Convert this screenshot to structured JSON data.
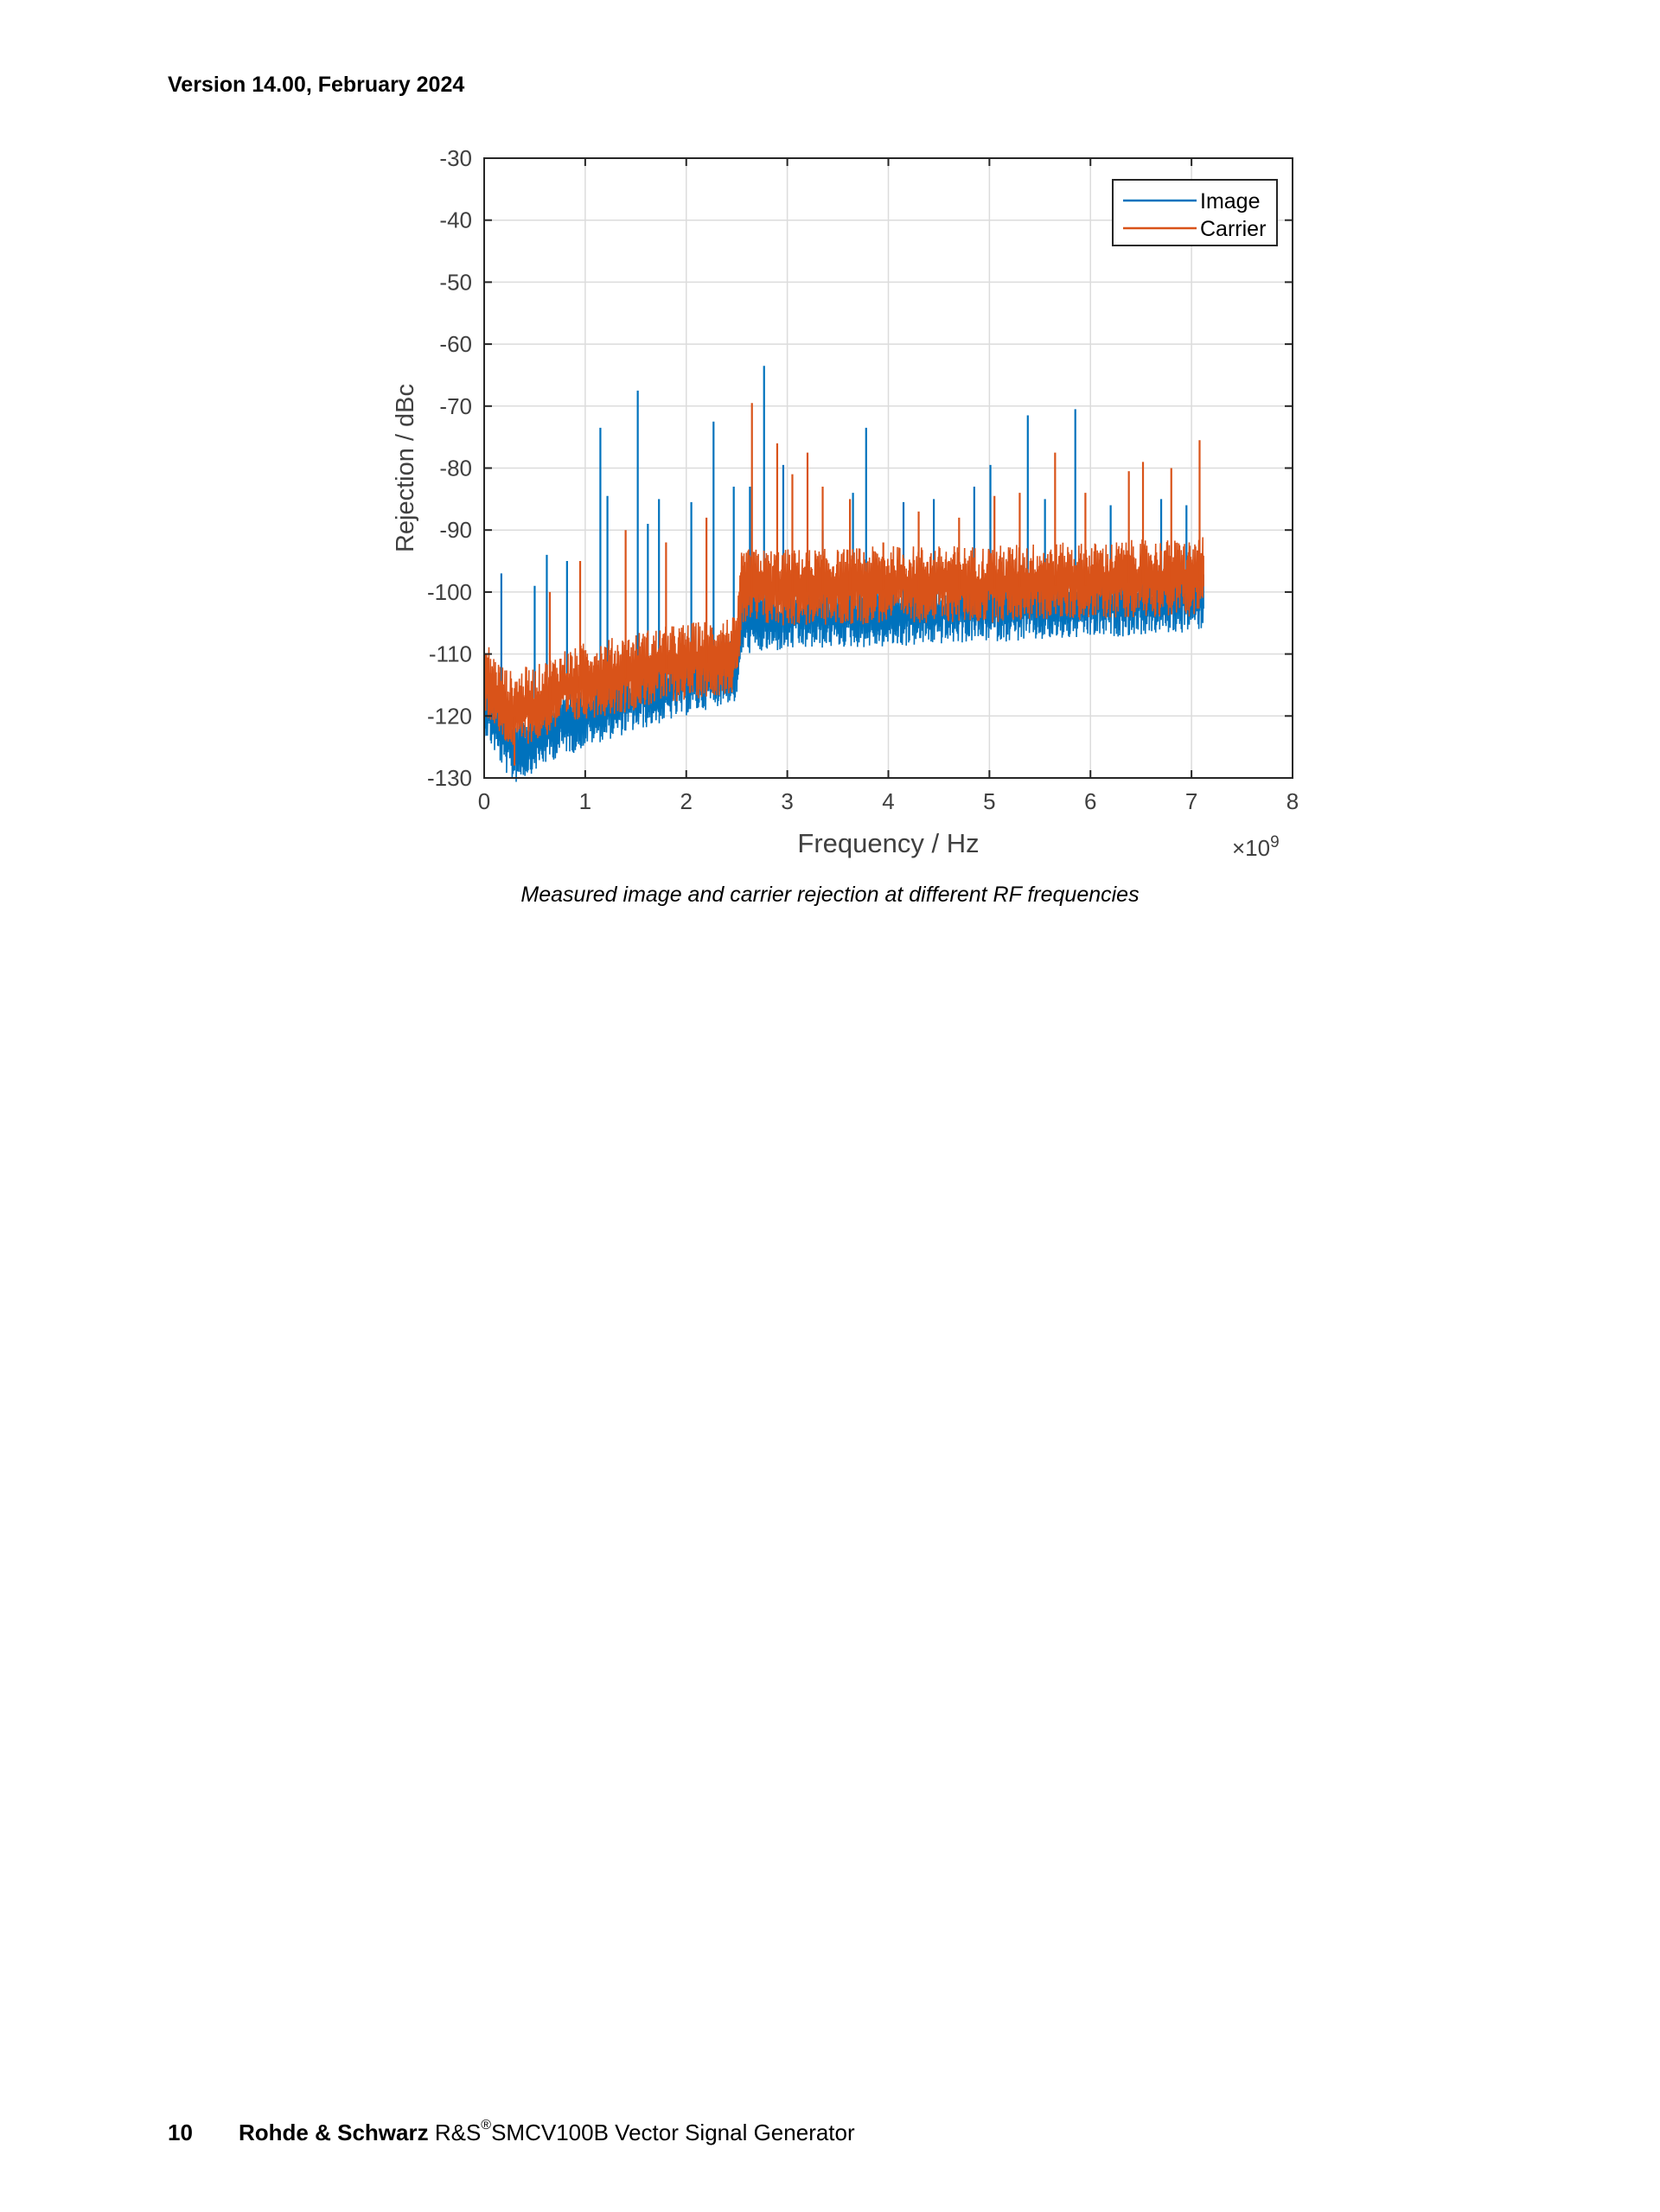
{
  "header": {
    "version_text": "Version 14.00, February 2024"
  },
  "figure": {
    "caption": "Measured image and carrier rejection at different RF frequencies"
  },
  "footer": {
    "page_number": "10",
    "brand": "Rohde & Schwarz",
    "product_prefix": "R&S",
    "registered_mark": "®",
    "product_name": "SMCV100B Vector Signal Generator"
  },
  "chart_data": {
    "type": "line",
    "title": "",
    "xlabel": "Frequency / Hz",
    "ylabel": "Rejection / dBc",
    "x_exponent_label": "×10",
    "x_exponent_power": "9",
    "xlim": [
      0,
      8
    ],
    "ylim": [
      -130,
      -30
    ],
    "x_ticks": [
      0,
      1,
      2,
      3,
      4,
      5,
      6,
      7,
      8
    ],
    "y_ticks": [
      -30,
      -40,
      -50,
      -60,
      -70,
      -80,
      -90,
      -100,
      -110,
      -120,
      -130
    ],
    "x_tick_labels": [
      "0",
      "1",
      "2",
      "3",
      "4",
      "5",
      "6",
      "7",
      "8"
    ],
    "y_tick_labels": [
      "-30",
      "-40",
      "-50",
      "-60",
      "-70",
      "-80",
      "-90",
      "-100",
      "-110",
      "-120",
      "-130"
    ],
    "grid": true,
    "legend_position": "top-right",
    "series": [
      {
        "name": "Image",
        "color": "#0072BD",
        "x": [
          0.0,
          0.1,
          0.2,
          0.3,
          0.4,
          0.5,
          0.6,
          0.7,
          0.8,
          0.9,
          1.0,
          1.2,
          1.4,
          1.6,
          1.8,
          2.0,
          2.2,
          2.4,
          2.5,
          2.55,
          2.7,
          3.0,
          3.5,
          4.0,
          4.5,
          5.0,
          5.5,
          6.0,
          6.5,
          7.0,
          7.12
        ],
        "y": [
          -117,
          -120,
          -123,
          -125,
          -124,
          -123,
          -122,
          -121,
          -120,
          -120,
          -119,
          -118,
          -117,
          -116,
          -115,
          -114,
          -113,
          -112,
          -112,
          -104,
          -104,
          -103.5,
          -103,
          -103,
          -102.5,
          -102,
          -102,
          -101.5,
          -101,
          -100.5,
          -100
        ],
        "peaks": [
          {
            "x": 0.17,
            "y": -97
          },
          {
            "x": 0.5,
            "y": -99
          },
          {
            "x": 0.62,
            "y": -94
          },
          {
            "x": 0.82,
            "y": -95
          },
          {
            "x": 1.15,
            "y": -73.5
          },
          {
            "x": 1.22,
            "y": -84.5
          },
          {
            "x": 1.52,
            "y": -67.5
          },
          {
            "x": 1.62,
            "y": -89
          },
          {
            "x": 1.73,
            "y": -85
          },
          {
            "x": 2.05,
            "y": -85.5
          },
          {
            "x": 2.27,
            "y": -72.5
          },
          {
            "x": 2.47,
            "y": -83
          },
          {
            "x": 2.63,
            "y": -83
          },
          {
            "x": 2.77,
            "y": -63.5
          },
          {
            "x": 2.96,
            "y": -79.5
          },
          {
            "x": 3.35,
            "y": -90
          },
          {
            "x": 3.65,
            "y": -84
          },
          {
            "x": 3.78,
            "y": -73.5
          },
          {
            "x": 4.15,
            "y": -85.5
          },
          {
            "x": 4.45,
            "y": -85
          },
          {
            "x": 4.85,
            "y": -83
          },
          {
            "x": 5.01,
            "y": -79.5
          },
          {
            "x": 5.38,
            "y": -71.5
          },
          {
            "x": 5.55,
            "y": -85
          },
          {
            "x": 5.85,
            "y": -70.5
          },
          {
            "x": 6.2,
            "y": -86
          },
          {
            "x": 6.7,
            "y": -85
          },
          {
            "x": 6.95,
            "y": -86
          }
        ]
      },
      {
        "name": "Carrier",
        "color": "#D95319",
        "x": [
          0.0,
          0.1,
          0.2,
          0.3,
          0.4,
          0.5,
          0.6,
          0.7,
          0.8,
          0.9,
          1.0,
          1.2,
          1.4,
          1.6,
          1.8,
          2.0,
          2.2,
          2.4,
          2.5,
          2.55,
          2.7,
          3.0,
          3.5,
          4.0,
          4.5,
          5.0,
          5.5,
          6.0,
          6.5,
          7.0,
          7.12
        ],
        "y": [
          -114,
          -117,
          -119,
          -120,
          -119,
          -119,
          -118,
          -117,
          -116,
          -116,
          -115,
          -114.5,
          -114,
          -113,
          -112.5,
          -112,
          -111.5,
          -111,
          -111,
          -100,
          -100,
          -100,
          -100,
          -99.5,
          -99.5,
          -99.5,
          -99,
          -99,
          -98.5,
          -98.5,
          -98
        ],
        "peaks": [
          {
            "x": 0.3,
            "y": -128
          },
          {
            "x": 0.65,
            "y": -100
          },
          {
            "x": 0.95,
            "y": -95
          },
          {
            "x": 1.4,
            "y": -90
          },
          {
            "x": 1.8,
            "y": -92
          },
          {
            "x": 2.2,
            "y": -88
          },
          {
            "x": 2.65,
            "y": -69.5
          },
          {
            "x": 2.9,
            "y": -76
          },
          {
            "x": 3.05,
            "y": -81
          },
          {
            "x": 3.2,
            "y": -77.5
          },
          {
            "x": 3.35,
            "y": -83
          },
          {
            "x": 3.62,
            "y": -85
          },
          {
            "x": 3.95,
            "y": -92
          },
          {
            "x": 4.3,
            "y": -87
          },
          {
            "x": 4.7,
            "y": -88
          },
          {
            "x": 5.05,
            "y": -84.5
          },
          {
            "x": 5.3,
            "y": -84
          },
          {
            "x": 5.65,
            "y": -77.5
          },
          {
            "x": 5.95,
            "y": -84
          },
          {
            "x": 6.38,
            "y": -80.5
          },
          {
            "x": 6.52,
            "y": -79
          },
          {
            "x": 6.8,
            "y": -80
          },
          {
            "x": 7.08,
            "y": -75.5
          }
        ]
      }
    ]
  }
}
